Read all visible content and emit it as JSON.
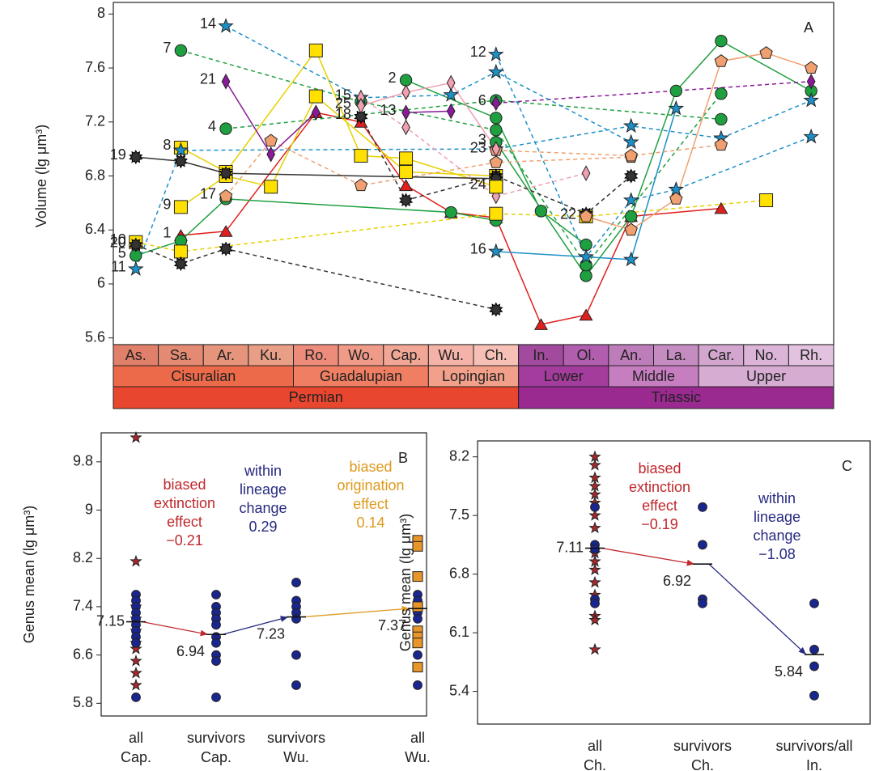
{
  "chart_data": [
    {
      "type": "line",
      "panel_label": "A",
      "ylabel": "Volume (lg μm³)",
      "categories": [
        "As.",
        "Sa.",
        "Ar.",
        "Ku.",
        "Ro.",
        "Wo.",
        "Cap.",
        "Wu.",
        "Ch.",
        "In.",
        "Ol.",
        "An.",
        "La.",
        "Car.",
        "No.",
        "Rh."
      ],
      "stage_colors": [
        "#e07f6a",
        "#e48a72",
        "#e6957c",
        "#e99e86",
        "#ee8c7c",
        "#f09a88",
        "#f2a696",
        "#f4b2a8",
        "#f6c0b6",
        "#a14a9e",
        "#b25eaf",
        "#bd7cba",
        "#c58cc2",
        "#d3a6cf",
        "#dbb4d8",
        "#e2c2df"
      ],
      "epochs": [
        {
          "label": "Cisuralian",
          "color": "#ec6a4a"
        },
        {
          "label": "Guadalupian",
          "color": "#ef7e62"
        },
        {
          "label": "Lopingian",
          "color": "#f3a08a"
        },
        {
          "label": "Lower",
          "color": "#a33c9c"
        },
        {
          "label": "Middle",
          "color": "#c77ec1"
        },
        {
          "label": "Upper",
          "color": "#d6acd3"
        }
      ],
      "periods": [
        {
          "label": "Permian",
          "color": "#e8462e"
        },
        {
          "label": "Triassic",
          "color": "#9a2a90"
        }
      ],
      "ylim": [
        5.55,
        8.05
      ],
      "yticks": [
        5.6,
        6.0,
        6.4,
        6.8,
        7.2,
        7.6,
        8.0
      ],
      "series": [
        {
          "name": "1",
          "marker": "triangle",
          "color": "#e0201e",
          "dashed": false,
          "values": [
            null,
            6.36,
            6.39,
            null,
            7.27,
            7.2,
            6.73,
            6.53,
            6.49,
            5.7,
            5.77,
            6.5,
            null,
            6.56,
            null,
            null
          ]
        },
        {
          "name": "2",
          "marker": "circle",
          "color": "#1fa040",
          "dashed": false,
          "values": [
            null,
            null,
            null,
            null,
            null,
            null,
            7.51,
            null,
            7.23,
            6.54,
            6.29,
            null,
            null,
            null,
            null,
            null
          ]
        },
        {
          "name": "3",
          "marker": "circle",
          "color": "#1fa040",
          "dashed": false,
          "values": [
            null,
            null,
            null,
            null,
            null,
            null,
            null,
            null,
            7.05,
            null,
            6.06,
            6.5,
            7.43,
            7.8,
            null,
            7.43
          ]
        },
        {
          "name": "4",
          "marker": "circle",
          "color": "#1fa040",
          "dashed": true,
          "values": [
            null,
            null,
            7.15,
            null,
            null,
            null,
            null,
            null,
            7.36,
            null,
            null,
            null,
            null,
            7.22,
            null,
            null
          ]
        },
        {
          "name": "5",
          "marker": "circle",
          "color": "#1fa040",
          "dashed": false,
          "values": [
            6.21,
            6.32,
            6.63,
            null,
            null,
            null,
            null,
            6.53,
            6.47,
            null,
            null,
            null,
            null,
            null,
            null,
            null
          ]
        },
        {
          "name": "6",
          "marker": "diamond",
          "color": "#8b1a9a",
          "dashed": true,
          "values": [
            null,
            null,
            null,
            null,
            null,
            null,
            null,
            null,
            7.34,
            null,
            null,
            null,
            null,
            null,
            null,
            7.5
          ]
        },
        {
          "name": "7",
          "marker": "circle",
          "color": "#1fa040",
          "dashed": true,
          "values": [
            null,
            7.73,
            null,
            null,
            null,
            7.35,
            null,
            null,
            7.14,
            null,
            6.14,
            null,
            null,
            7.41,
            null,
            null
          ]
        },
        {
          "name": "8",
          "marker": "square",
          "color": "#ffe000",
          "dashed": false,
          "values": [
            null,
            7.01,
            6.83,
            null,
            7.73,
            6.95,
            6.93,
            null,
            6.72,
            null,
            null,
            null,
            null,
            null,
            null,
            null
          ]
        },
        {
          "name": "9",
          "marker": "square",
          "color": "#ffe000",
          "dashed": false,
          "values": [
            null,
            6.57,
            6.8,
            6.72,
            7.39,
            null,
            6.83,
            null,
            6.8,
            null,
            null,
            null,
            null,
            null,
            null,
            null
          ]
        },
        {
          "name": "10",
          "marker": "square",
          "color": "#ffe000",
          "dashed": true,
          "values": [
            6.31,
            6.24,
            null,
            null,
            null,
            null,
            null,
            null,
            6.52,
            null,
            6.5,
            null,
            null,
            null,
            6.62,
            null
          ]
        },
        {
          "name": "11",
          "marker": "star",
          "color": "#1e90c8",
          "dashed": true,
          "values": [
            6.11,
            6.99,
            null,
            null,
            null,
            null,
            null,
            null,
            7.0,
            null,
            null,
            7.17,
            null,
            7.08,
            null,
            7.36
          ]
        },
        {
          "name": "12",
          "marker": "star",
          "color": "#1e90c8",
          "dashed": true,
          "values": [
            null,
            null,
            null,
            null,
            null,
            null,
            null,
            null,
            7.7,
            null,
            6.2,
            6.62,
            6.7,
            null,
            null,
            7.09
          ]
        },
        {
          "name": "13",
          "marker": "diamond",
          "color": "#8b1a9a",
          "dashed": false,
          "values": [
            null,
            null,
            null,
            null,
            null,
            null,
            7.27,
            7.28,
            null,
            null,
            null,
            null,
            null,
            null,
            null,
            null
          ]
        },
        {
          "name": "14",
          "marker": "star",
          "color": "#1e90c8",
          "dashed": true,
          "values": [
            null,
            null,
            7.91,
            null,
            null,
            7.38,
            null,
            7.4,
            7.57,
            null,
            null,
            7.05,
            null,
            null,
            null,
            null
          ]
        },
        {
          "name": "15",
          "marker": "diamond",
          "color": "#f0a0b0",
          "dashed": true,
          "values": [
            null,
            null,
            null,
            null,
            null,
            7.38,
            7.16,
            null,
            6.65,
            null,
            6.82,
            null,
            null,
            null,
            null,
            null
          ]
        },
        {
          "name": "16",
          "marker": "star",
          "color": "#1e90c8",
          "dashed": false,
          "values": [
            null,
            null,
            null,
            null,
            null,
            null,
            null,
            null,
            6.24,
            null,
            null,
            6.18,
            7.3,
            null,
            null,
            null
          ]
        },
        {
          "name": "17",
          "marker": "pentagon",
          "color": "#f0a070",
          "dashed": true,
          "values": [
            null,
            null,
            6.65,
            7.06,
            null,
            6.73,
            null,
            null,
            6.9,
            null,
            null,
            6.94,
            null,
            null,
            null,
            null
          ]
        },
        {
          "name": "18",
          "marker": "gear",
          "color": "#333333",
          "dashed": true,
          "values": [
            null,
            null,
            null,
            null,
            null,
            7.24,
            6.62,
            null,
            6.8,
            null,
            6.52,
            6.8,
            null,
            null,
            null,
            null
          ]
        },
        {
          "name": "19",
          "marker": "gear",
          "color": "#333333",
          "dashed": false,
          "values": [
            6.94,
            6.91,
            6.82,
            null,
            null,
            null,
            null,
            null,
            6.78,
            null,
            null,
            null,
            null,
            null,
            null,
            null
          ]
        },
        {
          "name": "20",
          "marker": "gear",
          "color": "#333333",
          "dashed": true,
          "values": [
            6.29,
            6.15,
            6.26,
            null,
            null,
            null,
            null,
            null,
            5.81,
            null,
            null,
            null,
            null,
            null,
            null,
            null
          ]
        },
        {
          "name": "21",
          "marker": "diamond",
          "color": "#8b1a9a",
          "dashed": false,
          "values": [
            null,
            null,
            7.5,
            6.96,
            7.27,
            null,
            null,
            null,
            null,
            null,
            null,
            null,
            null,
            null,
            null,
            null
          ]
        },
        {
          "name": "22",
          "marker": "pentagon",
          "color": "#f0a070",
          "dashed": false,
          "values": [
            null,
            null,
            null,
            null,
            null,
            null,
            null,
            null,
            null,
            null,
            6.5,
            6.4,
            6.63,
            7.65,
            7.71,
            7.6
          ]
        },
        {
          "name": "23",
          "marker": "pentagon",
          "color": "#f0a070",
          "dashed": true,
          "values": [
            null,
            null,
            null,
            null,
            null,
            null,
            null,
            null,
            6.99,
            null,
            null,
            6.95,
            null,
            7.03,
            null,
            null
          ]
        },
        {
          "name": "24",
          "marker": "square",
          "color": "#ffe000",
          "dashed": false,
          "values": [
            null,
            null,
            null,
            null,
            null,
            null,
            null,
            null,
            6.72,
            null,
            null,
            null,
            null,
            null,
            null,
            null
          ]
        },
        {
          "name": "25",
          "marker": "diamond",
          "color": "#f0a0b0",
          "dashed": false,
          "values": [
            null,
            null,
            null,
            null,
            null,
            7.32,
            7.42,
            7.49,
            7.0,
            null,
            null,
            null,
            null,
            null,
            null,
            null
          ]
        }
      ]
    },
    {
      "type": "strip",
      "panel_label": "B",
      "ylabel": "Genus mean (lg μm³)",
      "ylim": [
        5.59,
        10.28
      ],
      "yticks": [
        5.8,
        6.6,
        7.4,
        8.2,
        9.0,
        9.8
      ],
      "groups": [
        {
          "label": [
            "all",
            "Cap."
          ],
          "mean": 7.15,
          "points": [
            {
              "marker": "star",
              "color": "#a8282d",
              "values": [
                10.2,
                8.15,
                7.4,
                7.2,
                7.0,
                6.8,
                6.7,
                6.5,
                6.3,
                6.1
              ]
            },
            {
              "marker": "circle",
              "color": "#1a2690",
              "values": [
                7.6,
                7.5,
                7.4,
                7.3,
                7.2,
                7.1,
                7.0,
                6.9,
                6.8,
                5.9
              ]
            }
          ]
        },
        {
          "label": [
            "survivors",
            "Cap."
          ],
          "mean": 6.94,
          "points": [
            {
              "marker": "circle",
              "color": "#1a2690",
              "values": [
                7.6,
                7.4,
                7.3,
                7.2,
                7.1,
                6.9,
                6.8,
                6.6,
                6.5,
                5.9
              ]
            }
          ]
        },
        {
          "label": [
            "survivors",
            "Wu."
          ],
          "mean": 7.23,
          "points": [
            {
              "marker": "circle",
              "color": "#1a2690",
              "values": [
                7.8,
                7.5,
                7.4,
                7.3,
                7.2,
                6.6,
                6.1
              ]
            }
          ]
        },
        {
          "label": [
            "all",
            "Wu."
          ],
          "mean": 7.37,
          "points": [
            {
              "marker": "circle",
              "color": "#1a2690",
              "values": [
                7.6,
                7.5,
                7.3,
                7.2,
                7.0,
                6.6,
                6.1
              ]
            },
            {
              "marker": "square",
              "color": "#e8952a",
              "values": [
                8.5,
                8.4,
                7.9,
                7.4,
                7.0,
                6.9,
                6.8,
                6.4
              ]
            }
          ]
        }
      ],
      "annotations": [
        {
          "lines": [
            "biased",
            "extinction",
            "effect",
            "−0.21"
          ],
          "color": "#c0282d"
        },
        {
          "lines": [
            "within",
            "lineage",
            "change",
            "0.29"
          ],
          "color": "#262a80"
        },
        {
          "lines": [
            "biased",
            "origination",
            "effect",
            "0.14"
          ],
          "color": "#dd9a1e"
        }
      ]
    },
    {
      "type": "strip",
      "panel_label": "C",
      "ylabel": "Genus mean (lg μm³)",
      "ylim": [
        5.01,
        8.39
      ],
      "yticks": [
        5.4,
        6.1,
        6.8,
        7.5,
        8.2
      ],
      "groups": [
        {
          "label": [
            "all",
            "Ch."
          ],
          "mean": 7.11,
          "points": [
            {
              "marker": "star",
              "color": "#a8282d",
              "values": [
                8.2,
                8.1,
                7.95,
                7.85,
                7.75,
                7.65,
                7.5,
                7.35,
                7.05,
                6.95,
                6.85,
                6.7,
                6.55,
                6.3,
                6.25,
                5.9
              ]
            },
            {
              "marker": "circle",
              "color": "#1a2690",
              "values": [
                7.6,
                7.15,
                7.1,
                6.5,
                6.45
              ]
            }
          ]
        },
        {
          "label": [
            "survivors",
            "Ch."
          ],
          "mean": 6.92,
          "points": [
            {
              "marker": "circle",
              "color": "#1a2690",
              "values": [
                7.6,
                7.15,
                6.5,
                6.45
              ]
            }
          ]
        },
        {
          "label": [
            "survivors/all",
            "In."
          ],
          "mean": 5.84,
          "points": [
            {
              "marker": "circle",
              "color": "#1a2690",
              "values": [
                6.45,
                5.9,
                5.7,
                5.35
              ]
            }
          ]
        }
      ],
      "annotations": [
        {
          "lines": [
            "biased",
            "extinction",
            "effect",
            "−0.19"
          ],
          "color": "#c0282d"
        },
        {
          "lines": [
            "within",
            "lineage",
            "change",
            "−1.08"
          ],
          "color": "#262a80"
        }
      ]
    }
  ]
}
